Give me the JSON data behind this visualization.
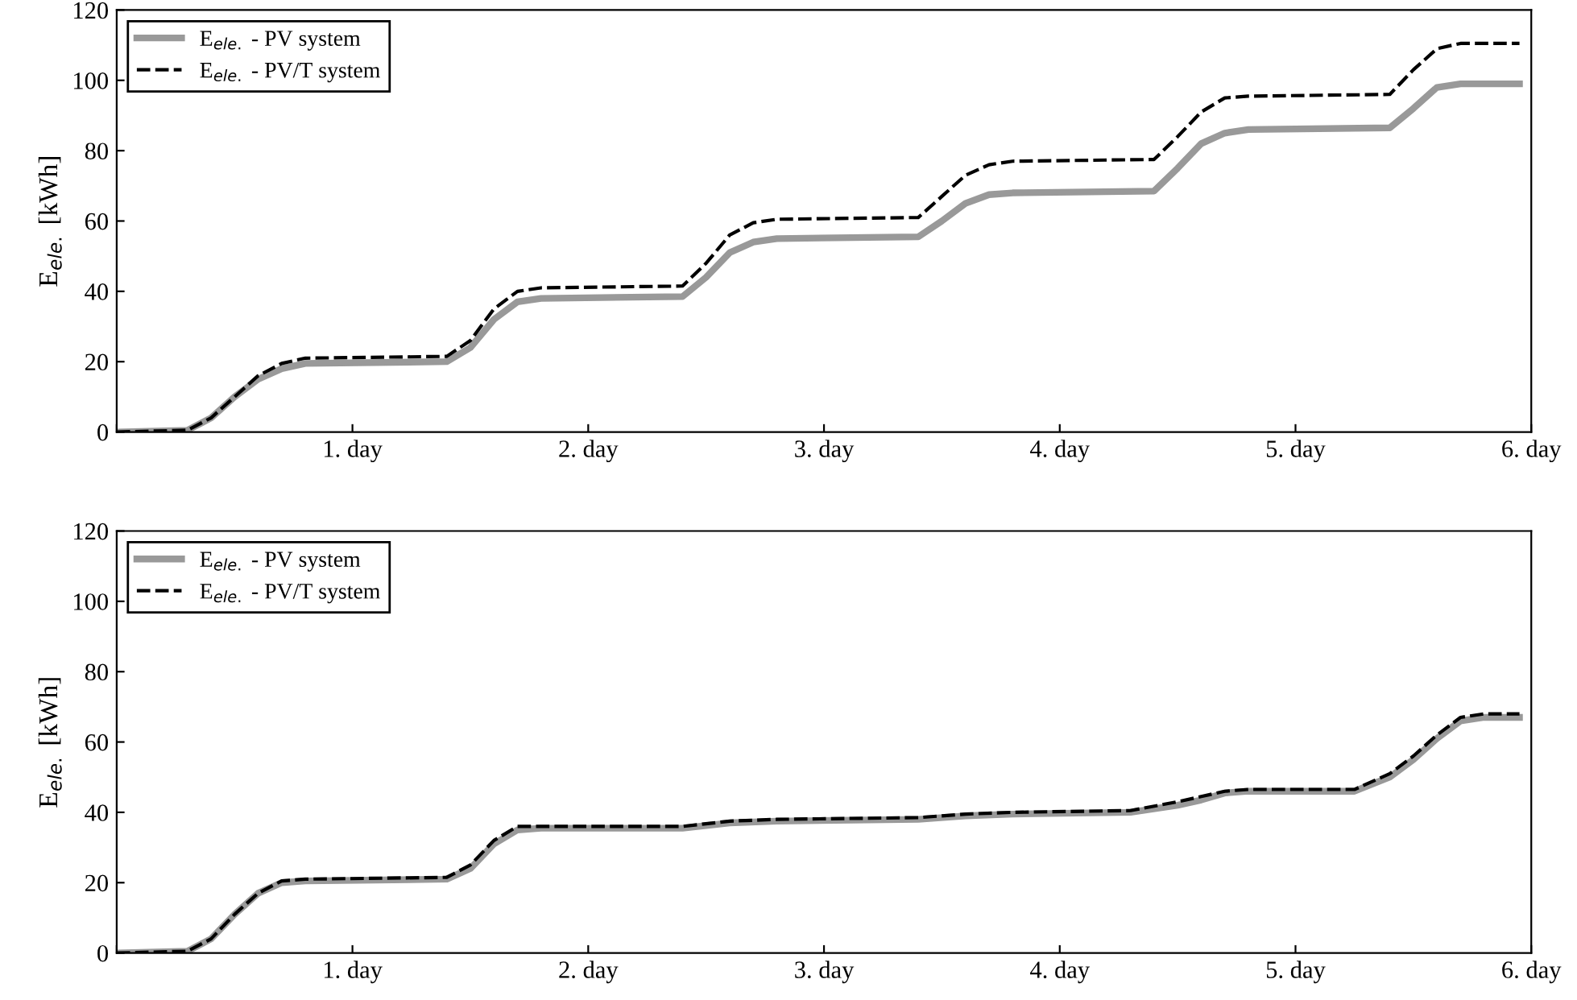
{
  "chart_data": [
    {
      "type": "line",
      "ylabel": "E$_{ele.}$ [kWh]",
      "xlim": [
        0,
        6
      ],
      "ylim": [
        0,
        120
      ],
      "yticks": [
        0,
        20,
        40,
        60,
        80,
        100,
        120
      ],
      "xticks": [
        {
          "value": 0,
          "label": null
        },
        {
          "value": 1,
          "label": "1. day"
        },
        {
          "value": 2,
          "label": "2. day"
        },
        {
          "value": 3,
          "label": "3. day"
        },
        {
          "value": 4,
          "label": "4. day"
        },
        {
          "value": 5,
          "label": "5. day"
        },
        {
          "value": 6,
          "label": "6. day"
        }
      ],
      "legend": "top left",
      "grid": false,
      "series": [
        {
          "name": "E$_{ele.}$ - PV system",
          "color": "#999999",
          "line_style": "solid",
          "x": [
            0,
            0.3,
            0.4,
            0.5,
            0.6,
            0.7,
            0.8,
            1.4,
            1.5,
            1.6,
            1.7,
            1.8,
            2.4,
            2.5,
            2.6,
            2.7,
            2.8,
            3.4,
            3.5,
            3.6,
            3.7,
            3.8,
            4.4,
            4.5,
            4.6,
            4.7,
            4.8,
            5.4,
            5.5,
            5.6,
            5.7,
            5.8,
            5.95
          ],
          "values": [
            0,
            0.5,
            4,
            10,
            15,
            18,
            19.5,
            20,
            24,
            32,
            37,
            38,
            38.5,
            44,
            51,
            54,
            55,
            55.5,
            60,
            65,
            67.5,
            68,
            68.5,
            75,
            82,
            85,
            86,
            86.5,
            92,
            98,
            99,
            99,
            99
          ]
        },
        {
          "name": "E$_{ele.}$ - PV/T system",
          "color": "#000000",
          "line_style": "dashed",
          "x": [
            0,
            0.3,
            0.4,
            0.5,
            0.6,
            0.7,
            0.8,
            1.4,
            1.5,
            1.6,
            1.7,
            1.8,
            2.4,
            2.5,
            2.6,
            2.7,
            2.8,
            3.4,
            3.5,
            3.6,
            3.7,
            3.8,
            4.4,
            4.5,
            4.6,
            4.7,
            4.8,
            5.4,
            5.5,
            5.6,
            5.7,
            5.8,
            5.95
          ],
          "values": [
            0,
            0.5,
            4,
            10,
            16,
            19.5,
            21,
            21.5,
            26,
            35,
            40,
            41,
            41.5,
            48,
            56,
            59.5,
            60.5,
            61,
            67,
            73,
            76,
            77,
            77.5,
            84,
            91,
            95,
            95.5,
            96,
            103,
            109,
            110.5,
            110.5,
            110.5
          ]
        }
      ]
    },
    {
      "type": "line",
      "ylabel": "E$_{ele.}$ [kWh]",
      "xlim": [
        0,
        6
      ],
      "ylim": [
        0,
        120
      ],
      "yticks": [
        0,
        20,
        40,
        60,
        80,
        100,
        120
      ],
      "xticks": [
        {
          "value": 0,
          "label": null
        },
        {
          "value": 1,
          "label": "1. day"
        },
        {
          "value": 2,
          "label": "2. day"
        },
        {
          "value": 3,
          "label": "3. day"
        },
        {
          "value": 4,
          "label": "4. day"
        },
        {
          "value": 5,
          "label": "5. day"
        },
        {
          "value": 6,
          "label": "6. day"
        }
      ],
      "legend": "top left",
      "grid": false,
      "series": [
        {
          "name": "E$_{ele.}$ - PV system",
          "color": "#999999",
          "line_style": "solid",
          "x": [
            0,
            0.3,
            0.4,
            0.5,
            0.6,
            0.7,
            0.8,
            1.4,
            1.5,
            1.6,
            1.7,
            1.8,
            2.4,
            2.6,
            2.8,
            3.4,
            3.6,
            3.8,
            4.3,
            4.5,
            4.6,
            4.7,
            4.8,
            5.25,
            5.4,
            5.5,
            5.6,
            5.7,
            5.8,
            5.95
          ],
          "values": [
            0,
            0.5,
            4,
            11,
            17,
            20,
            20.5,
            21,
            24,
            31,
            35,
            35.5,
            35.5,
            37,
            37.5,
            38,
            39,
            39.5,
            40,
            42,
            43.5,
            45.5,
            46,
            46,
            50,
            55,
            61,
            66,
            67,
            67
          ]
        },
        {
          "name": "E$_{ele.}$ - PV/T system",
          "color": "#000000",
          "line_style": "dashed",
          "x": [
            0,
            0.3,
            0.4,
            0.5,
            0.6,
            0.7,
            0.8,
            1.4,
            1.5,
            1.6,
            1.7,
            1.8,
            2.4,
            2.6,
            2.8,
            3.4,
            3.6,
            3.8,
            4.3,
            4.5,
            4.6,
            4.7,
            4.8,
            5.25,
            5.4,
            5.5,
            5.6,
            5.7,
            5.8,
            5.95
          ],
          "values": [
            0,
            0.5,
            4,
            11,
            17,
            20.5,
            21,
            21.5,
            25,
            32,
            36,
            36,
            36,
            37.5,
            38,
            38.5,
            39.5,
            40,
            40.5,
            43,
            44.5,
            46,
            46.5,
            46.5,
            51,
            56,
            62,
            67,
            68,
            68
          ]
        }
      ]
    }
  ]
}
